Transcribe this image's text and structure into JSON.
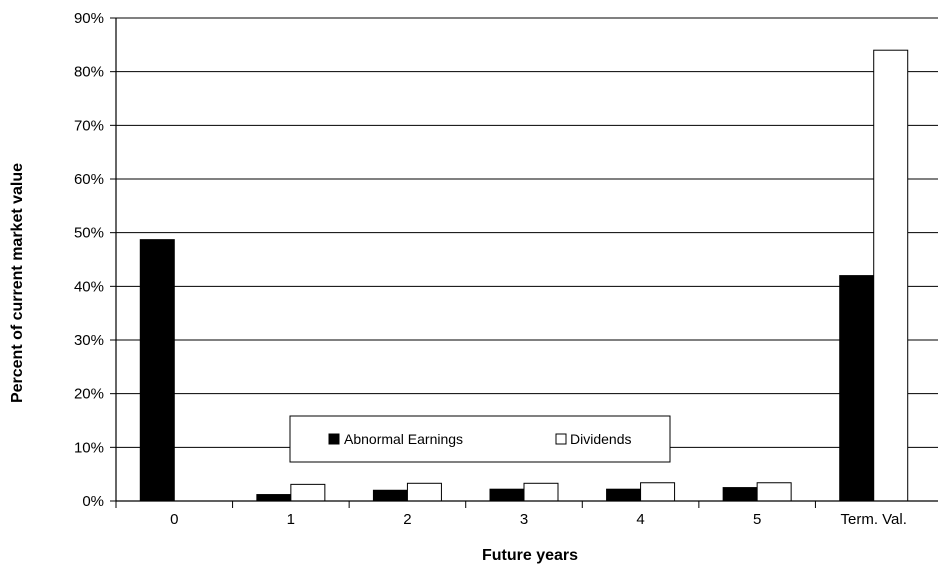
{
  "chart_data": {
    "type": "bar",
    "title": "",
    "xlabel": "Future years",
    "ylabel": "Percent of current market value",
    "categories": [
      "0",
      "1",
      "2",
      "3",
      "4",
      "5",
      "Term. Val."
    ],
    "series": [
      {
        "name": "Abnormal Earnings",
        "color": "#000000",
        "values": [
          48.7,
          1.2,
          2.0,
          2.2,
          2.2,
          2.5,
          42.0
        ]
      },
      {
        "name": "Dividends",
        "color": "#ffffff",
        "values": [
          0,
          3.1,
          3.3,
          3.3,
          3.4,
          3.4,
          84.0
        ]
      }
    ],
    "ylim": [
      0,
      90
    ],
    "yticks": [
      {
        "value": 0,
        "label": "0%"
      },
      {
        "value": 10,
        "label": "10%"
      },
      {
        "value": 20,
        "label": "20%"
      },
      {
        "value": 30,
        "label": "30%"
      },
      {
        "value": 40,
        "label": "40%"
      },
      {
        "value": 50,
        "label": "50%"
      },
      {
        "value": 60,
        "label": "60%"
      },
      {
        "value": 70,
        "label": "70%"
      },
      {
        "value": 80,
        "label": "80%"
      },
      {
        "value": 90,
        "label": "90%"
      }
    ],
    "grid": true,
    "legend": "bottom-center"
  }
}
